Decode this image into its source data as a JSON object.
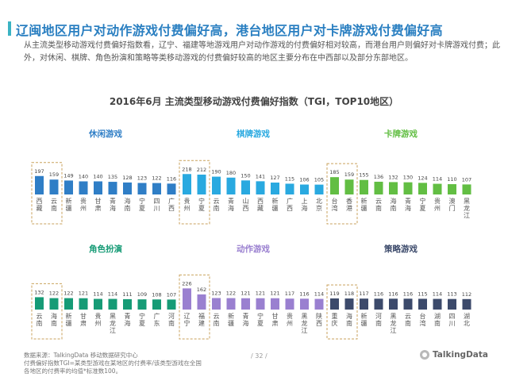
{
  "header": {
    "title": "辽闽地区用户对动作游戏付费偏好高，港台地区用户对卡牌游戏付费偏好高",
    "intro": "从主流类型移动游戏付费偏好指数看，辽宁、福建等地游戏用户对动作游戏的付费偏好相对较高，而港台用户则偏好对卡牌游戏付费；此外，对休闲、棋牌、角色扮演和策略等类移动游戏的付费偏好较高的地区主要分布在中西部以及部分东部地区。",
    "accent_color": "#3bb3c3"
  },
  "chart_title": "2016年6月 主流类型移动游戏付费偏好指数（TGI，TOP10地区）",
  "chart_data": [
    {
      "type": "bar",
      "title": "休闲游戏",
      "color": "#2f7ec6",
      "highlight_count": 2,
      "categories": [
        "西藏",
        "云南",
        "新疆",
        "贵州",
        "甘肃",
        "青海",
        "海南",
        "宁夏",
        "四川",
        "广西"
      ],
      "values": [
        197,
        159,
        149,
        140,
        140,
        135,
        128,
        123,
        122,
        116
      ]
    },
    {
      "type": "bar",
      "title": "棋牌游戏",
      "color": "#29a9e0",
      "highlight_count": 2,
      "categories": [
        "贵州",
        "宁夏",
        "云南",
        "青海",
        "山西",
        "西藏",
        "新疆",
        "广西",
        "上海",
        "北京"
      ],
      "values": [
        218,
        212,
        190,
        180,
        150,
        141,
        127,
        115,
        106,
        105
      ]
    },
    {
      "type": "bar",
      "title": "卡牌游戏",
      "color": "#62be43",
      "highlight_count": 2,
      "categories": [
        "台湾",
        "香港",
        "新疆",
        "云南",
        "海南",
        "青海",
        "宁夏",
        "贵州",
        "澳门",
        "黑龙江"
      ],
      "values": [
        185,
        159,
        155,
        136,
        132,
        130,
        124,
        114,
        110,
        107
      ]
    },
    {
      "type": "bar",
      "title": "角色扮演",
      "color": "#169b76",
      "highlight_count": 2,
      "categories": [
        "云南",
        "海南",
        "新疆",
        "甘肃",
        "贵州",
        "黑龙江",
        "青海",
        "宁夏",
        "广东",
        "河南"
      ],
      "values": [
        132,
        122,
        122,
        121,
        114,
        114,
        111,
        109,
        108,
        107
      ]
    },
    {
      "type": "bar",
      "title": "动作游戏",
      "color": "#9a80d0",
      "highlight_count": 2,
      "categories": [
        "辽宁",
        "福建",
        "云南",
        "新疆",
        "青海",
        "宁夏",
        "甘肃",
        "贵州",
        "黑龙江",
        "陕西"
      ],
      "values": [
        226,
        162,
        123,
        122,
        121,
        121,
        121,
        117,
        116,
        114
      ]
    },
    {
      "type": "bar",
      "title": "策略游戏",
      "color": "#3c4a6b",
      "highlight_count": 2,
      "categories": [
        "重庆",
        "海南",
        "新疆",
        "河南",
        "黑龙江",
        "云南",
        "台湾",
        "湖南",
        "四川",
        "湖北"
      ],
      "values": [
        119,
        118,
        117,
        116,
        116,
        116,
        115,
        114,
        113,
        112
      ]
    }
  ],
  "footer": {
    "source": "数据来源：TalkingData 移动数据研究中心",
    "note1": "付费偏好指数TGI=某类型游戏在某地区的付费率/该类型游戏在全国",
    "note2": "各地区的付费率的均值*标准数100。",
    "page": "/ 32 /",
    "brand": "TalkingData"
  }
}
